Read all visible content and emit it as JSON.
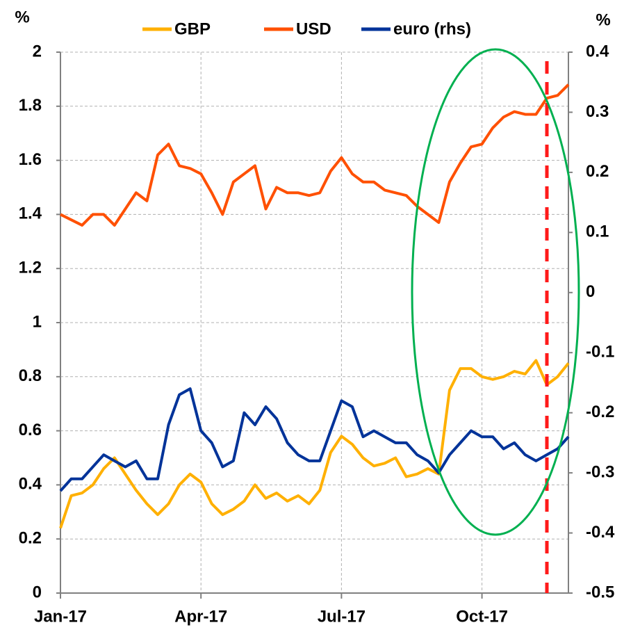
{
  "chart_data": {
    "type": "line",
    "ylabel": "%",
    "y2label": "%",
    "categories": [
      "Jan-17",
      null,
      null,
      null,
      null,
      null,
      null,
      null,
      null,
      null,
      null,
      null,
      null,
      "Apr-17",
      null,
      null,
      null,
      null,
      null,
      null,
      null,
      null,
      null,
      null,
      null,
      null,
      "Jul-17",
      null,
      null,
      null,
      null,
      null,
      null,
      null,
      null,
      null,
      null,
      null,
      null,
      "Oct-17",
      null,
      null,
      null,
      null,
      null,
      null,
      null,
      null
    ],
    "series": [
      {
        "name": "GBP",
        "color": "#ffb000",
        "values": [
          0.24,
          0.36,
          0.37,
          0.4,
          0.46,
          0.5,
          0.44,
          0.38,
          0.33,
          0.29,
          0.33,
          0.4,
          0.44,
          0.41,
          0.33,
          0.29,
          0.31,
          0.34,
          0.4,
          0.35,
          0.37,
          0.34,
          0.36,
          0.33,
          0.38,
          0.52,
          0.58,
          0.55,
          0.5,
          0.47,
          0.48,
          0.5,
          0.43,
          0.44,
          0.46,
          0.44,
          0.75,
          0.83,
          0.83,
          0.8,
          0.79,
          0.8,
          0.82,
          0.81,
          0.86,
          0.77,
          0.8,
          0.85
        ]
      },
      {
        "name": "USD",
        "color": "#ff5000",
        "values": [
          1.4,
          1.38,
          1.36,
          1.4,
          1.4,
          1.36,
          1.42,
          1.48,
          1.45,
          1.62,
          1.66,
          1.58,
          1.57,
          1.55,
          1.48,
          1.4,
          1.52,
          1.55,
          1.58,
          1.42,
          1.5,
          1.48,
          1.48,
          1.47,
          1.48,
          1.56,
          1.61,
          1.55,
          1.52,
          1.52,
          1.49,
          1.48,
          1.47,
          1.43,
          1.4,
          1.37,
          1.52,
          1.59,
          1.65,
          1.66,
          1.72,
          1.76,
          1.78,
          1.77,
          1.77,
          1.83,
          1.84,
          1.88
        ]
      },
      {
        "name": "euro (rhs)",
        "color": "#003399",
        "axis": "y2",
        "values": [
          -0.33,
          -0.31,
          -0.31,
          -0.29,
          -0.27,
          -0.28,
          -0.29,
          -0.28,
          -0.31,
          -0.31,
          -0.22,
          -0.17,
          -0.16,
          -0.23,
          -0.25,
          -0.29,
          -0.28,
          -0.2,
          -0.22,
          -0.19,
          -0.21,
          -0.25,
          -0.27,
          -0.28,
          -0.28,
          -0.23,
          -0.18,
          -0.19,
          -0.24,
          -0.23,
          -0.24,
          -0.25,
          -0.25,
          -0.27,
          -0.28,
          -0.3,
          -0.27,
          -0.25,
          -0.23,
          -0.24,
          -0.24,
          -0.26,
          -0.25,
          -0.27,
          -0.28,
          -0.27,
          -0.26,
          -0.24
        ]
      }
    ],
    "ylim": [
      0,
      2
    ],
    "yticks": [
      0,
      0.2,
      0.4,
      0.6,
      0.8,
      1,
      1.2,
      1.4,
      1.6,
      1.8,
      2
    ],
    "y2lim": [
      -0.5,
      0.4
    ],
    "y2ticks": [
      -0.5,
      -0.4,
      -0.3,
      -0.2,
      -0.1,
      0,
      0.1,
      0.2,
      0.3,
      0.4
    ],
    "grid": true,
    "legend": "top"
  }
}
